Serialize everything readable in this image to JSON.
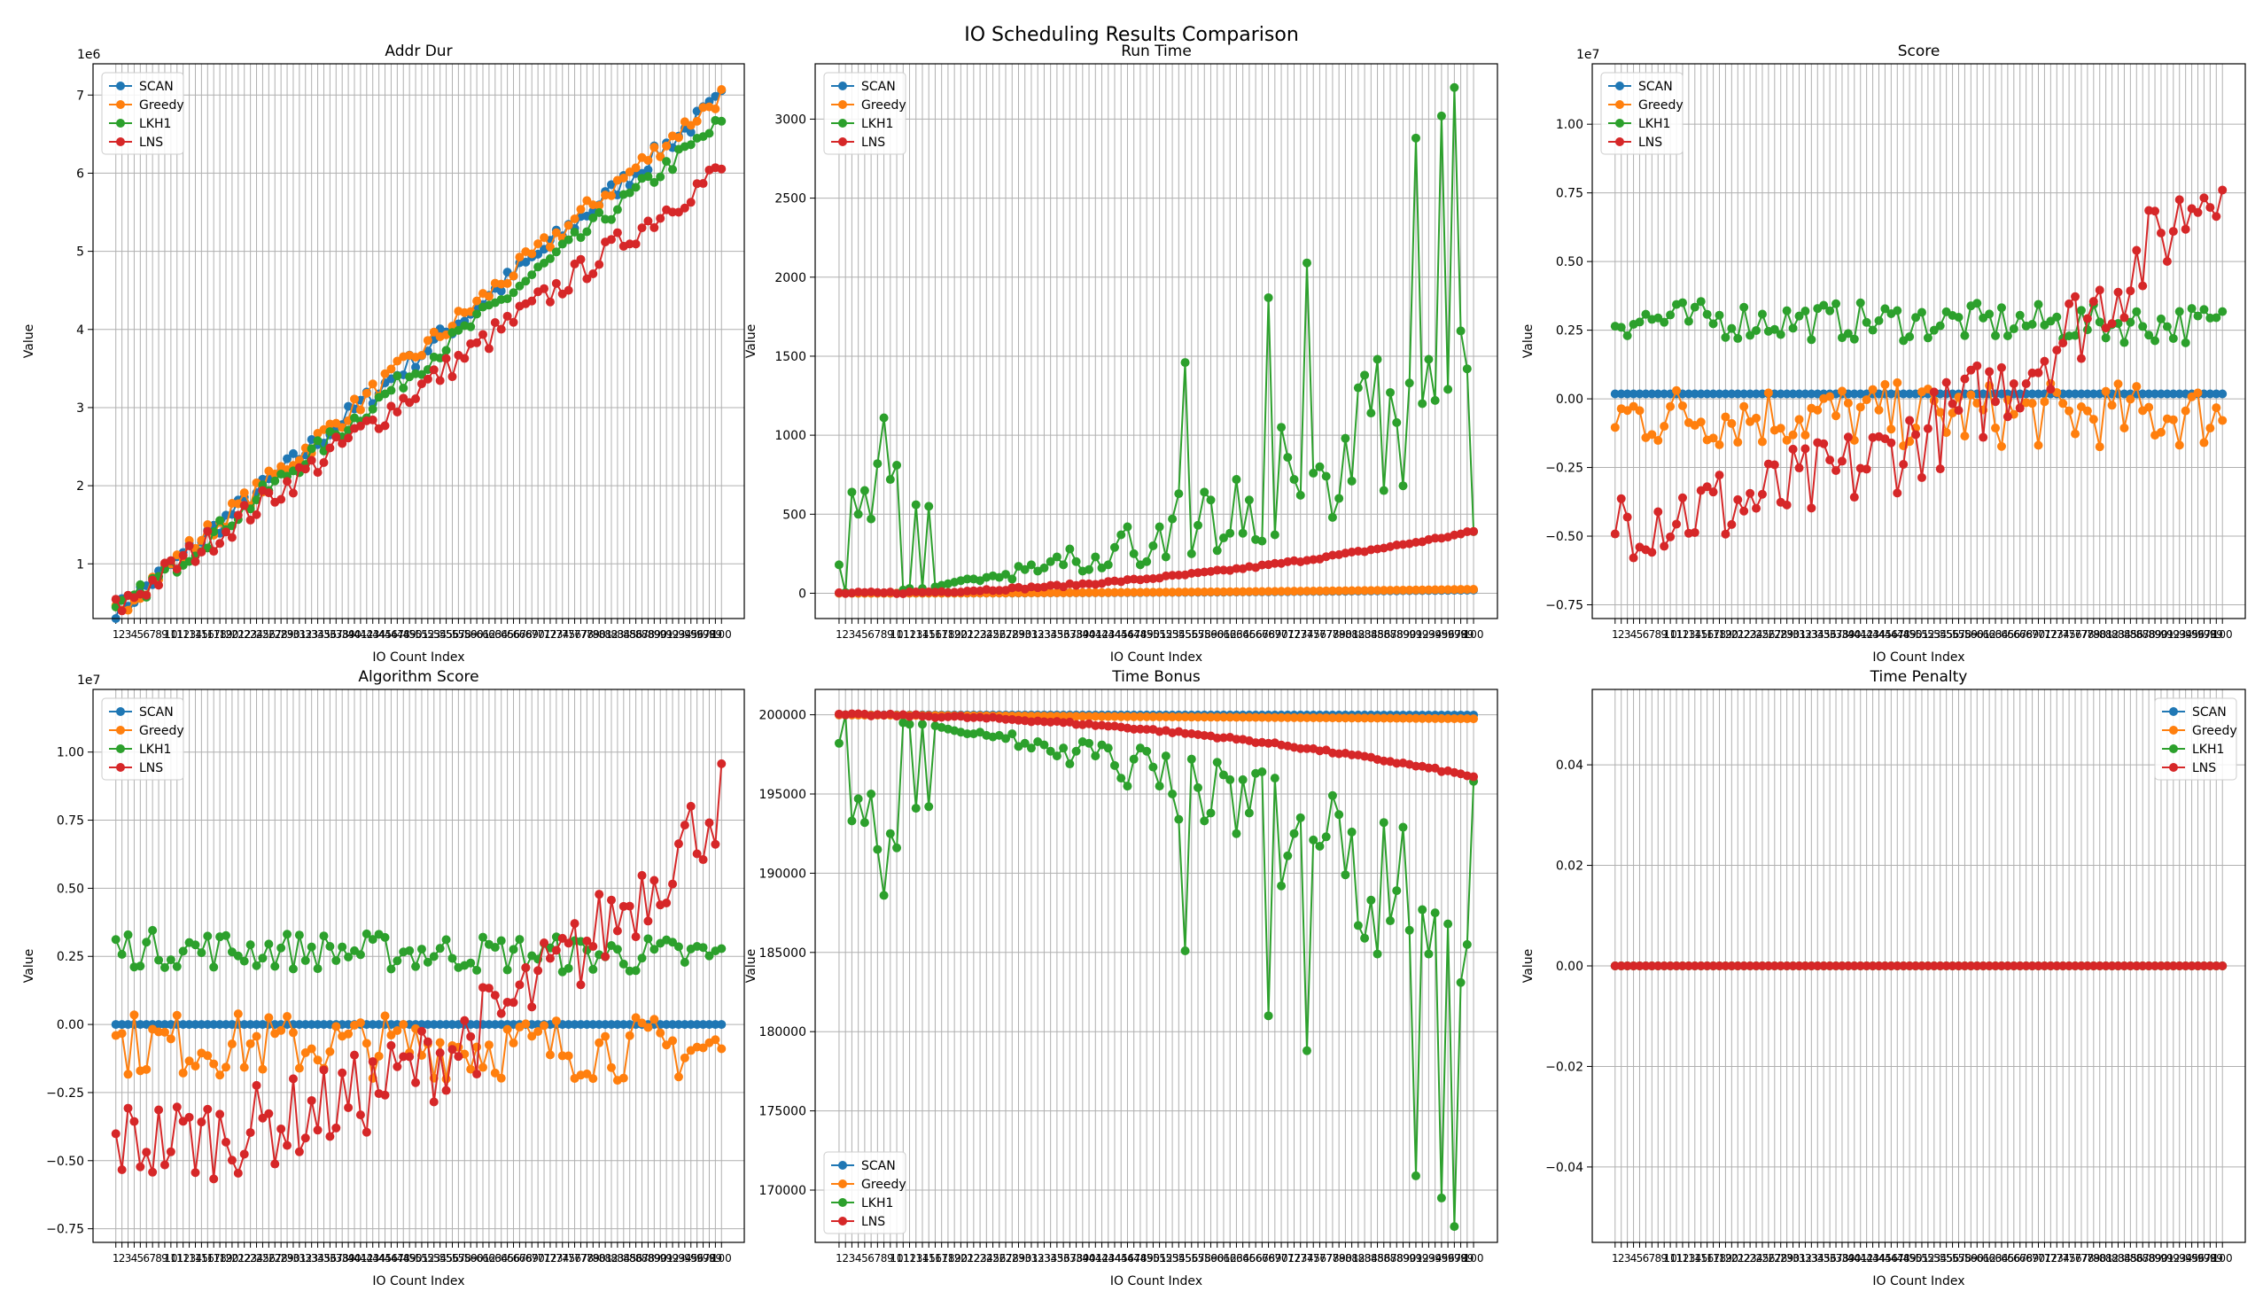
{
  "suptitle": "IO Scheduling Results Comparison",
  "colors": {
    "SCAN": "#1f77b4",
    "Greedy": "#ff7f0e",
    "LKH1": "#2ca02c",
    "LNS": "#d62728"
  },
  "chart_data": [
    {
      "type": "line",
      "title": "Addr Dur",
      "xlabel": "IO Count Index",
      "ylabel": "Value",
      "offset_label": "1e6",
      "x_count": 100,
      "x_ticks": "1 2 3 ... 100 (overlapping labels)",
      "ylim": [
        300000,
        7400000
      ],
      "yticks": [
        1000000,
        2000000,
        3000000,
        4000000,
        5000000,
        6000000,
        7000000
      ],
      "ytick_labels": [
        "1",
        "2",
        "3",
        "4",
        "5",
        "6",
        "7"
      ],
      "grid": true,
      "legend": "top-left",
      "series": [
        {
          "name": "SCAN",
          "trend": "linear",
          "start": 380000,
          "end": 6950000,
          "noise": 130000
        },
        {
          "name": "Greedy",
          "trend": "linear",
          "start": 400000,
          "end": 7000000,
          "noise": 130000
        },
        {
          "name": "LKH1",
          "trend": "linear",
          "start": 370000,
          "end": 6650000,
          "noise": 120000
        },
        {
          "name": "LNS",
          "trend": "linear",
          "start": 420000,
          "end": 6050000,
          "noise": 170000
        }
      ]
    },
    {
      "type": "line",
      "title": "Run Time",
      "xlabel": "IO Count Index",
      "ylabel": "Value",
      "offset_label": "",
      "x_count": 100,
      "ylim": [
        -160,
        3350
      ],
      "yticks": [
        0,
        500,
        1000,
        1500,
        2000,
        2500,
        3000
      ],
      "ytick_labels": [
        "0",
        "500",
        "1000",
        "1500",
        "2000",
        "2500",
        "3000"
      ],
      "grid": true,
      "legend": "top-left",
      "series": [
        {
          "name": "SCAN",
          "trend": "quadratic",
          "start": 0,
          "end": 20,
          "noise": 0
        },
        {
          "name": "Greedy",
          "trend": "quadratic",
          "start": 0,
          "end": 25,
          "noise": 0
        },
        {
          "name": "LKH1",
          "trend": "spiky",
          "values": [
            180,
            5,
            640,
            500,
            650,
            470,
            820,
            1110,
            720,
            810,
            20,
            30,
            560,
            30,
            550,
            40,
            50,
            60,
            70,
            80,
            90,
            90,
            80,
            100,
            110,
            100,
            120,
            90,
            170,
            150,
            180,
            140,
            160,
            200,
            230,
            180,
            280,
            200,
            140,
            150,
            230,
            160,
            180,
            290,
            370,
            420,
            250,
            180,
            200,
            300,
            420,
            230,
            470,
            630,
            1460,
            250,
            430,
            640,
            590,
            270,
            350,
            380,
            720,
            380,
            590,
            340,
            330,
            1870,
            370,
            1050,
            860,
            720,
            620,
            2090,
            760,
            800,
            740,
            480,
            600,
            980,
            710,
            1300,
            1380,
            1140,
            1480,
            650,
            1270,
            1080,
            680,
            1330,
            2880,
            1200,
            1480,
            1220,
            3020,
            1290,
            3200,
            1660,
            1420,
            390
          ]
        },
        {
          "name": "LNS",
          "trend": "quadratic",
          "start": 0,
          "end": 390,
          "noise": 8
        }
      ]
    },
    {
      "type": "line",
      "title": "Score",
      "xlabel": "IO Count Index",
      "ylabel": "Value",
      "offset_label": "1e7",
      "x_count": 100,
      "ylim": [
        -8000000,
        12200000
      ],
      "yticks": [
        -7500000,
        -5000000,
        -2500000,
        0,
        2500000,
        5000000,
        7500000,
        10000000
      ],
      "ytick_labels": [
        "−0.75",
        "−0.50",
        "−0.25",
        "0.00",
        "0.25",
        "0.50",
        "0.75",
        "1.00"
      ],
      "grid": true,
      "legend": "top-left",
      "series": [
        {
          "name": "SCAN",
          "trend": "flat",
          "start": 180000,
          "end": 180000,
          "noise": 0
        },
        {
          "name": "Greedy",
          "trend": "noisy",
          "start": -600000,
          "end": -600000,
          "noise": 1200000
        },
        {
          "name": "LKH1",
          "trend": "noisy",
          "start": 2900000,
          "end": 2700000,
          "noise": 700000
        },
        {
          "name": "LNS",
          "trend": "rising",
          "start": -4200000,
          "end": 8500000,
          "noise": 1600000
        }
      ]
    },
    {
      "type": "line",
      "title": "Algorithm Score",
      "xlabel": "IO Count Index",
      "ylabel": "Value",
      "offset_label": "1e7",
      "x_count": 100,
      "ylim": [
        -8000000,
        12300000
      ],
      "yticks": [
        -7500000,
        -5000000,
        -2500000,
        0,
        2500000,
        5000000,
        7500000,
        10000000
      ],
      "ytick_labels": [
        "−0.75",
        "−0.50",
        "−0.25",
        "0.00",
        "0.25",
        "0.50",
        "0.75",
        "1.00"
      ],
      "grid": true,
      "legend": "top-left",
      "series": [
        {
          "name": "SCAN",
          "trend": "flat",
          "start": 0,
          "end": 0,
          "noise": 0
        },
        {
          "name": "Greedy",
          "trend": "noisy",
          "start": -700000,
          "end": -900000,
          "noise": 1200000
        },
        {
          "name": "LKH1",
          "trend": "noisy",
          "start": 2800000,
          "end": 2500000,
          "noise": 700000
        },
        {
          "name": "LNS",
          "trend": "rising",
          "start": -4300000,
          "end": 8300000,
          "noise": 1600000
        }
      ]
    },
    {
      "type": "line",
      "title": "Time Bonus",
      "xlabel": "IO Count Index",
      "ylabel": "Value",
      "offset_label": "",
      "x_count": 100,
      "ylim": [
        166700,
        201600
      ],
      "yticks": [
        170000,
        175000,
        180000,
        185000,
        190000,
        195000,
        200000
      ],
      "ytick_labels": [
        "170000",
        "175000",
        "180000",
        "185000",
        "190000",
        "195000",
        "200000"
      ],
      "grid": true,
      "legend": "bottom-left",
      "series": [
        {
          "name": "SCAN",
          "trend": "flat",
          "start": 199990,
          "end": 199980,
          "noise": 0
        },
        {
          "name": "Greedy",
          "trend": "flat",
          "start": 199990,
          "end": 199750,
          "noise": 0
        },
        {
          "name": "LKH1",
          "trend": "mirror-runtime"
        },
        {
          "name": "LNS",
          "trend": "quadratic",
          "start": 199990,
          "end": 196100,
          "noise": 80
        }
      ]
    },
    {
      "type": "line",
      "title": "Time Penalty",
      "xlabel": "IO Count Index",
      "ylabel": "Value",
      "offset_label": "",
      "x_count": 100,
      "ylim": [
        -0.055,
        0.055
      ],
      "yticks": [
        -0.04,
        -0.02,
        0,
        0.02,
        0.04
      ],
      "ytick_labels": [
        "−0.04",
        "−0.02",
        "0.00",
        "0.02",
        "0.04"
      ],
      "grid": true,
      "legend": "top-right",
      "series": [
        {
          "name": "SCAN",
          "trend": "flat",
          "start": 0,
          "end": 0,
          "noise": 0
        },
        {
          "name": "Greedy",
          "trend": "flat",
          "start": 0,
          "end": 0,
          "noise": 0
        },
        {
          "name": "LKH1",
          "trend": "flat",
          "start": 0,
          "end": 0,
          "noise": 0
        },
        {
          "name": "LNS",
          "trend": "flat",
          "start": 0,
          "end": 0,
          "noise": 0
        }
      ]
    }
  ]
}
